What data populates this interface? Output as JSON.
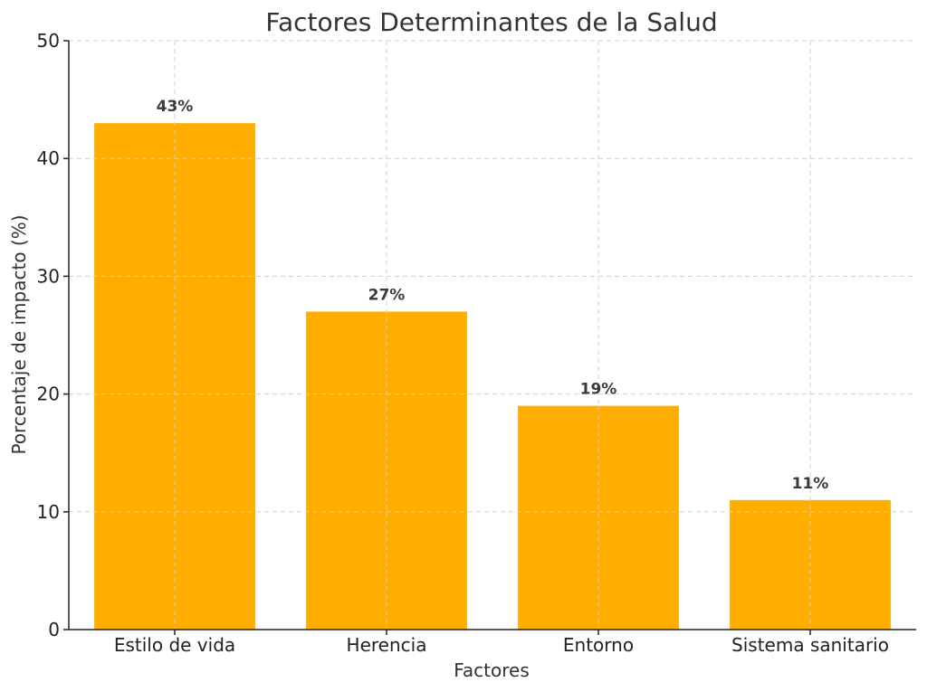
{
  "chart_data": {
    "type": "bar",
    "title": "Factores Determinantes de la Salud",
    "xlabel": "Factores",
    "ylabel": "Porcentaje de impacto (%)",
    "categories": [
      "Estilo de vida",
      "Herencia",
      "Entorno",
      "Sistema sanitario"
    ],
    "values": [
      43,
      27,
      19,
      11
    ],
    "data_labels": [
      "43%",
      "27%",
      "19%",
      "11%"
    ],
    "ylim": [
      0,
      50
    ],
    "yticks": [
      0,
      10,
      20,
      30,
      40,
      50
    ],
    "bar_color": "#FFAE00",
    "grid": true
  }
}
